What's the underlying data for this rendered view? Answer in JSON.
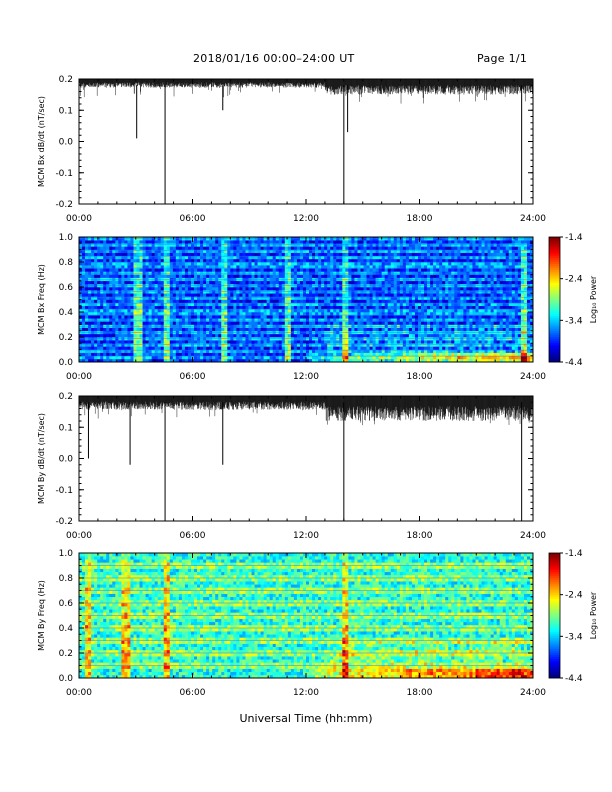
{
  "header": {
    "title": "2018/01/16  00:00–24:00 UT",
    "page": "Page 1/1"
  },
  "xlabel": "Universal Time (hh:mm)",
  "chart_data": [
    {
      "type": "line",
      "ylabel": "MCM Bx dB/dt (nT/sec)",
      "xlim": [
        0,
        24
      ],
      "ylim": [
        -0.2,
        0.2
      ],
      "xticks": [
        "00:00",
        "06:00",
        "12:00",
        "18:00",
        "24:00"
      ],
      "yticks": [
        "-0.2",
        "-0.1",
        "0.0",
        "0.1",
        "0.2"
      ],
      "baseline_band": [
        0.15,
        0.2
      ],
      "spikes": [
        {
          "x": 3.05,
          "y": 0.01
        },
        {
          "x": 4.55,
          "y": -0.2
        },
        {
          "x": 7.6,
          "y": 0.1
        },
        {
          "x": 14.0,
          "y": -0.2
        },
        {
          "x": 14.2,
          "y": 0.03
        },
        {
          "x": 23.4,
          "y": -0.2
        }
      ]
    },
    {
      "type": "heatmap",
      "ylabel": "MCM Bx Freq (Hz)",
      "xlim": [
        0,
        24
      ],
      "ylim": [
        0,
        1.0
      ],
      "xticks": [
        "00:00",
        "06:00",
        "12:00",
        "18:00",
        "24:00"
      ],
      "yticks": [
        "0.0",
        "0.2",
        "0.4",
        "0.6",
        "0.8",
        "1.0"
      ],
      "colorbar": {
        "label": "Log₁₀ Power",
        "ticks": [
          "-1.4",
          "-2.4",
          "-3.4",
          "-4.4"
        ],
        "range": [
          -4.4,
          -1.4
        ]
      },
      "background_level": -3.9,
      "harmonic_lines_hz": [
        0.047,
        0.094,
        0.141,
        0.188,
        0.235,
        0.282,
        0.329,
        0.376,
        0.423,
        0.47,
        0.517,
        0.564,
        0.611,
        0.658,
        0.705,
        0.752,
        0.799,
        0.846,
        0.893,
        0.94,
        0.987
      ],
      "bright_vertical_times": [
        3.05,
        4.55,
        7.6,
        11.0,
        14.0,
        23.4
      ]
    },
    {
      "type": "line",
      "ylabel": "MCM By dB/dt (nT/sec)",
      "xlim": [
        0,
        24
      ],
      "ylim": [
        -0.2,
        0.2
      ],
      "xticks": [
        "00:00",
        "06:00",
        "12:00",
        "18:00",
        "24:00"
      ],
      "yticks": [
        "-0.2",
        "-0.1",
        "0.0",
        "0.1",
        "0.2"
      ],
      "baseline_band": [
        0.12,
        0.2
      ],
      "spikes": [
        {
          "x": 0.5,
          "y": 0.0
        },
        {
          "x": 2.7,
          "y": -0.02
        },
        {
          "x": 4.55,
          "y": -0.2
        },
        {
          "x": 7.6,
          "y": -0.02
        },
        {
          "x": 14.0,
          "y": -0.2
        },
        {
          "x": 23.4,
          "y": -0.2
        }
      ]
    },
    {
      "type": "heatmap",
      "ylabel": "MCM By Freq (Hz)",
      "xlim": [
        0,
        24
      ],
      "ylim": [
        0,
        1.0
      ],
      "xticks": [
        "00:00",
        "06:00",
        "12:00",
        "18:00",
        "24:00"
      ],
      "yticks": [
        "0.0",
        "0.2",
        "0.4",
        "0.6",
        "0.8",
        "1.0"
      ],
      "colorbar": {
        "label": "Log₁₀ Power",
        "ticks": [
          "-1.4",
          "-2.4",
          "-3.4",
          "-4.4"
        ],
        "range": [
          -4.4,
          -1.4
        ]
      },
      "background_level": -3.2,
      "harmonic_lines_hz": [
        0.1,
        0.2,
        0.3,
        0.4,
        0.5,
        0.6,
        0.7,
        0.8,
        0.9
      ],
      "bright_vertical_times": [
        0.45,
        2.4,
        4.55,
        14.0
      ]
    }
  ]
}
